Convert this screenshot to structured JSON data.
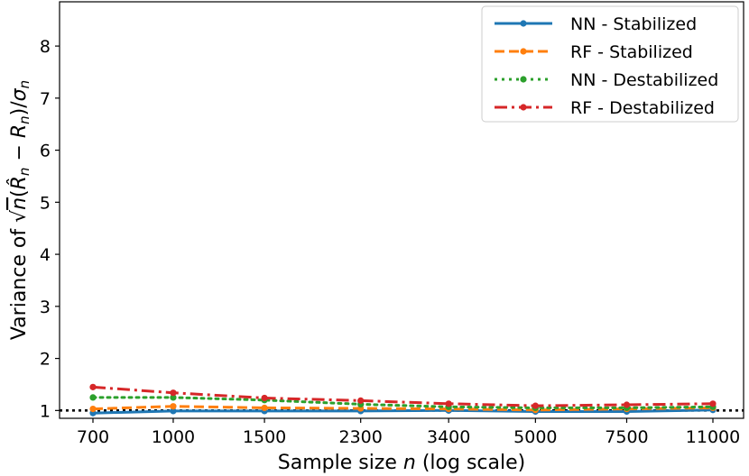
{
  "chart_data": {
    "type": "line",
    "xlabel": "Sample size n (log scale)",
    "ylabel": "Variance of √n(R̂n − Rn)/σn",
    "x_scale": "log",
    "categories": [
      "700",
      "1000",
      "1500",
      "2300",
      "3400",
      "5000",
      "7500",
      "11000"
    ],
    "x": [
      700,
      1000,
      1500,
      2300,
      3400,
      5000,
      7500,
      11000
    ],
    "ylim": [
      0.85,
      8.85
    ],
    "yticks": [
      1,
      2,
      3,
      4,
      5,
      6,
      7,
      8
    ],
    "reference_line": {
      "y": 1,
      "style": "dotted",
      "color": "#000000"
    },
    "legend_position": "top-right",
    "series": [
      {
        "name": "NN - Stabilized",
        "color": "#1f77b4",
        "style": "solid",
        "values": [
          0.95,
          0.99,
          0.99,
          0.99,
          1.0,
          0.98,
          0.98,
          1.01
        ]
      },
      {
        "name": "RF - Stabilized",
        "color": "#ff7f0e",
        "style": "dashed",
        "values": [
          1.03,
          1.08,
          1.05,
          1.04,
          1.03,
          1.01,
          1.03,
          1.05
        ]
      },
      {
        "name": "NN - Destabilized",
        "color": "#2ca02c",
        "style": "dotted",
        "values": [
          1.25,
          1.25,
          1.2,
          1.12,
          1.07,
          1.05,
          1.05,
          1.07
        ]
      },
      {
        "name": "RF - Destabilized",
        "color": "#d62728",
        "style": "dashdot",
        "values": [
          1.45,
          1.34,
          1.24,
          1.19,
          1.13,
          1.09,
          1.11,
          1.13
        ]
      }
    ]
  }
}
